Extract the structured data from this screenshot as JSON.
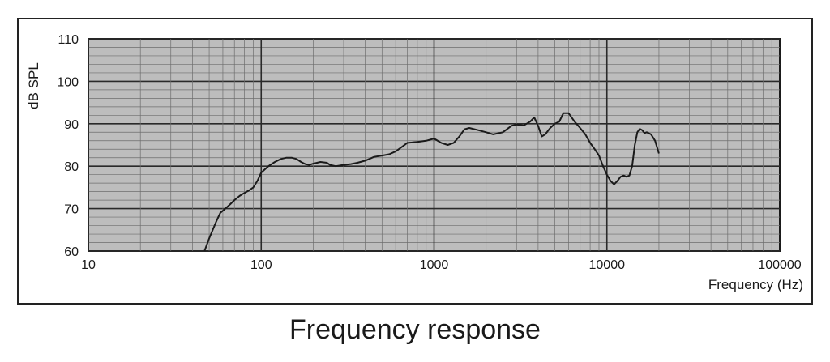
{
  "chart_data": {
    "type": "line",
    "xscale": "log",
    "xlim": [
      10,
      100000
    ],
    "ylim": [
      60,
      110
    ],
    "xlabel": "Frequency (Hz)",
    "ylabel": "dB SPL",
    "x_ticks": [
      "10",
      "100",
      "1000",
      "10000",
      "100000"
    ],
    "x_tick_values": [
      10,
      100,
      1000,
      10000,
      100000
    ],
    "y_ticks": [
      "60",
      "70",
      "80",
      "90",
      "100",
      "110"
    ],
    "y_tick_values": [
      60,
      70,
      80,
      90,
      100,
      110
    ],
    "grid": true,
    "colors": {
      "plot_bg": "#bdbdbd",
      "line": "#1a1a1a",
      "grid_major": "#2a2a2a",
      "grid_minor": "#6e6e6e"
    },
    "series": [
      {
        "x": [
          47,
          50,
          55,
          58,
          62,
          66,
          70,
          75,
          80,
          85,
          90,
          95,
          100,
          110,
          120,
          130,
          140,
          150,
          160,
          170,
          180,
          190,
          200,
          220,
          240,
          250,
          270,
          300,
          330,
          360,
          400,
          450,
          500,
          550,
          600,
          650,
          700,
          800,
          900,
          1000,
          1100,
          1200,
          1300,
          1400,
          1500,
          1600,
          1800,
          2000,
          2200,
          2500,
          2800,
          3000,
          3300,
          3600,
          3800,
          4000,
          4200,
          4400,
          4700,
          5000,
          5300,
          5600,
          6000,
          6500,
          7000,
          7500,
          8000,
          8500,
          9000,
          9500,
          10000,
          10500,
          11000,
          11500,
          12000,
          12500,
          13000,
          13500,
          14000,
          14500,
          15000,
          15500,
          16000,
          16500,
          17000,
          18000,
          19000,
          20000
        ],
        "y": [
          60,
          63,
          67,
          69,
          70,
          71,
          72,
          73,
          73.7,
          74.3,
          75,
          76.5,
          78.5,
          80,
          81,
          81.7,
          82,
          82,
          81.7,
          81,
          80.5,
          80.3,
          80.6,
          81,
          80.8,
          80.3,
          80,
          80.3,
          80.5,
          80.8,
          81.3,
          82.2,
          82.5,
          82.8,
          83.5,
          84.5,
          85.5,
          85.7,
          86,
          86.5,
          85.5,
          85,
          85.5,
          87,
          88.7,
          89,
          88.5,
          88,
          87.5,
          88,
          89.5,
          89.8,
          89.6,
          90.5,
          91.5,
          89.5,
          87,
          87.5,
          89,
          90,
          90.5,
          92.5,
          92.5,
          90.5,
          89,
          87.5,
          85.5,
          84,
          82.5,
          80,
          78,
          76.5,
          75.7,
          76.5,
          77.5,
          77.8,
          77.5,
          77.8,
          80,
          85,
          88,
          88.8,
          88.5,
          87.8,
          88,
          87.5,
          86,
          83
        ]
      }
    ]
  },
  "caption": "Frequency response"
}
